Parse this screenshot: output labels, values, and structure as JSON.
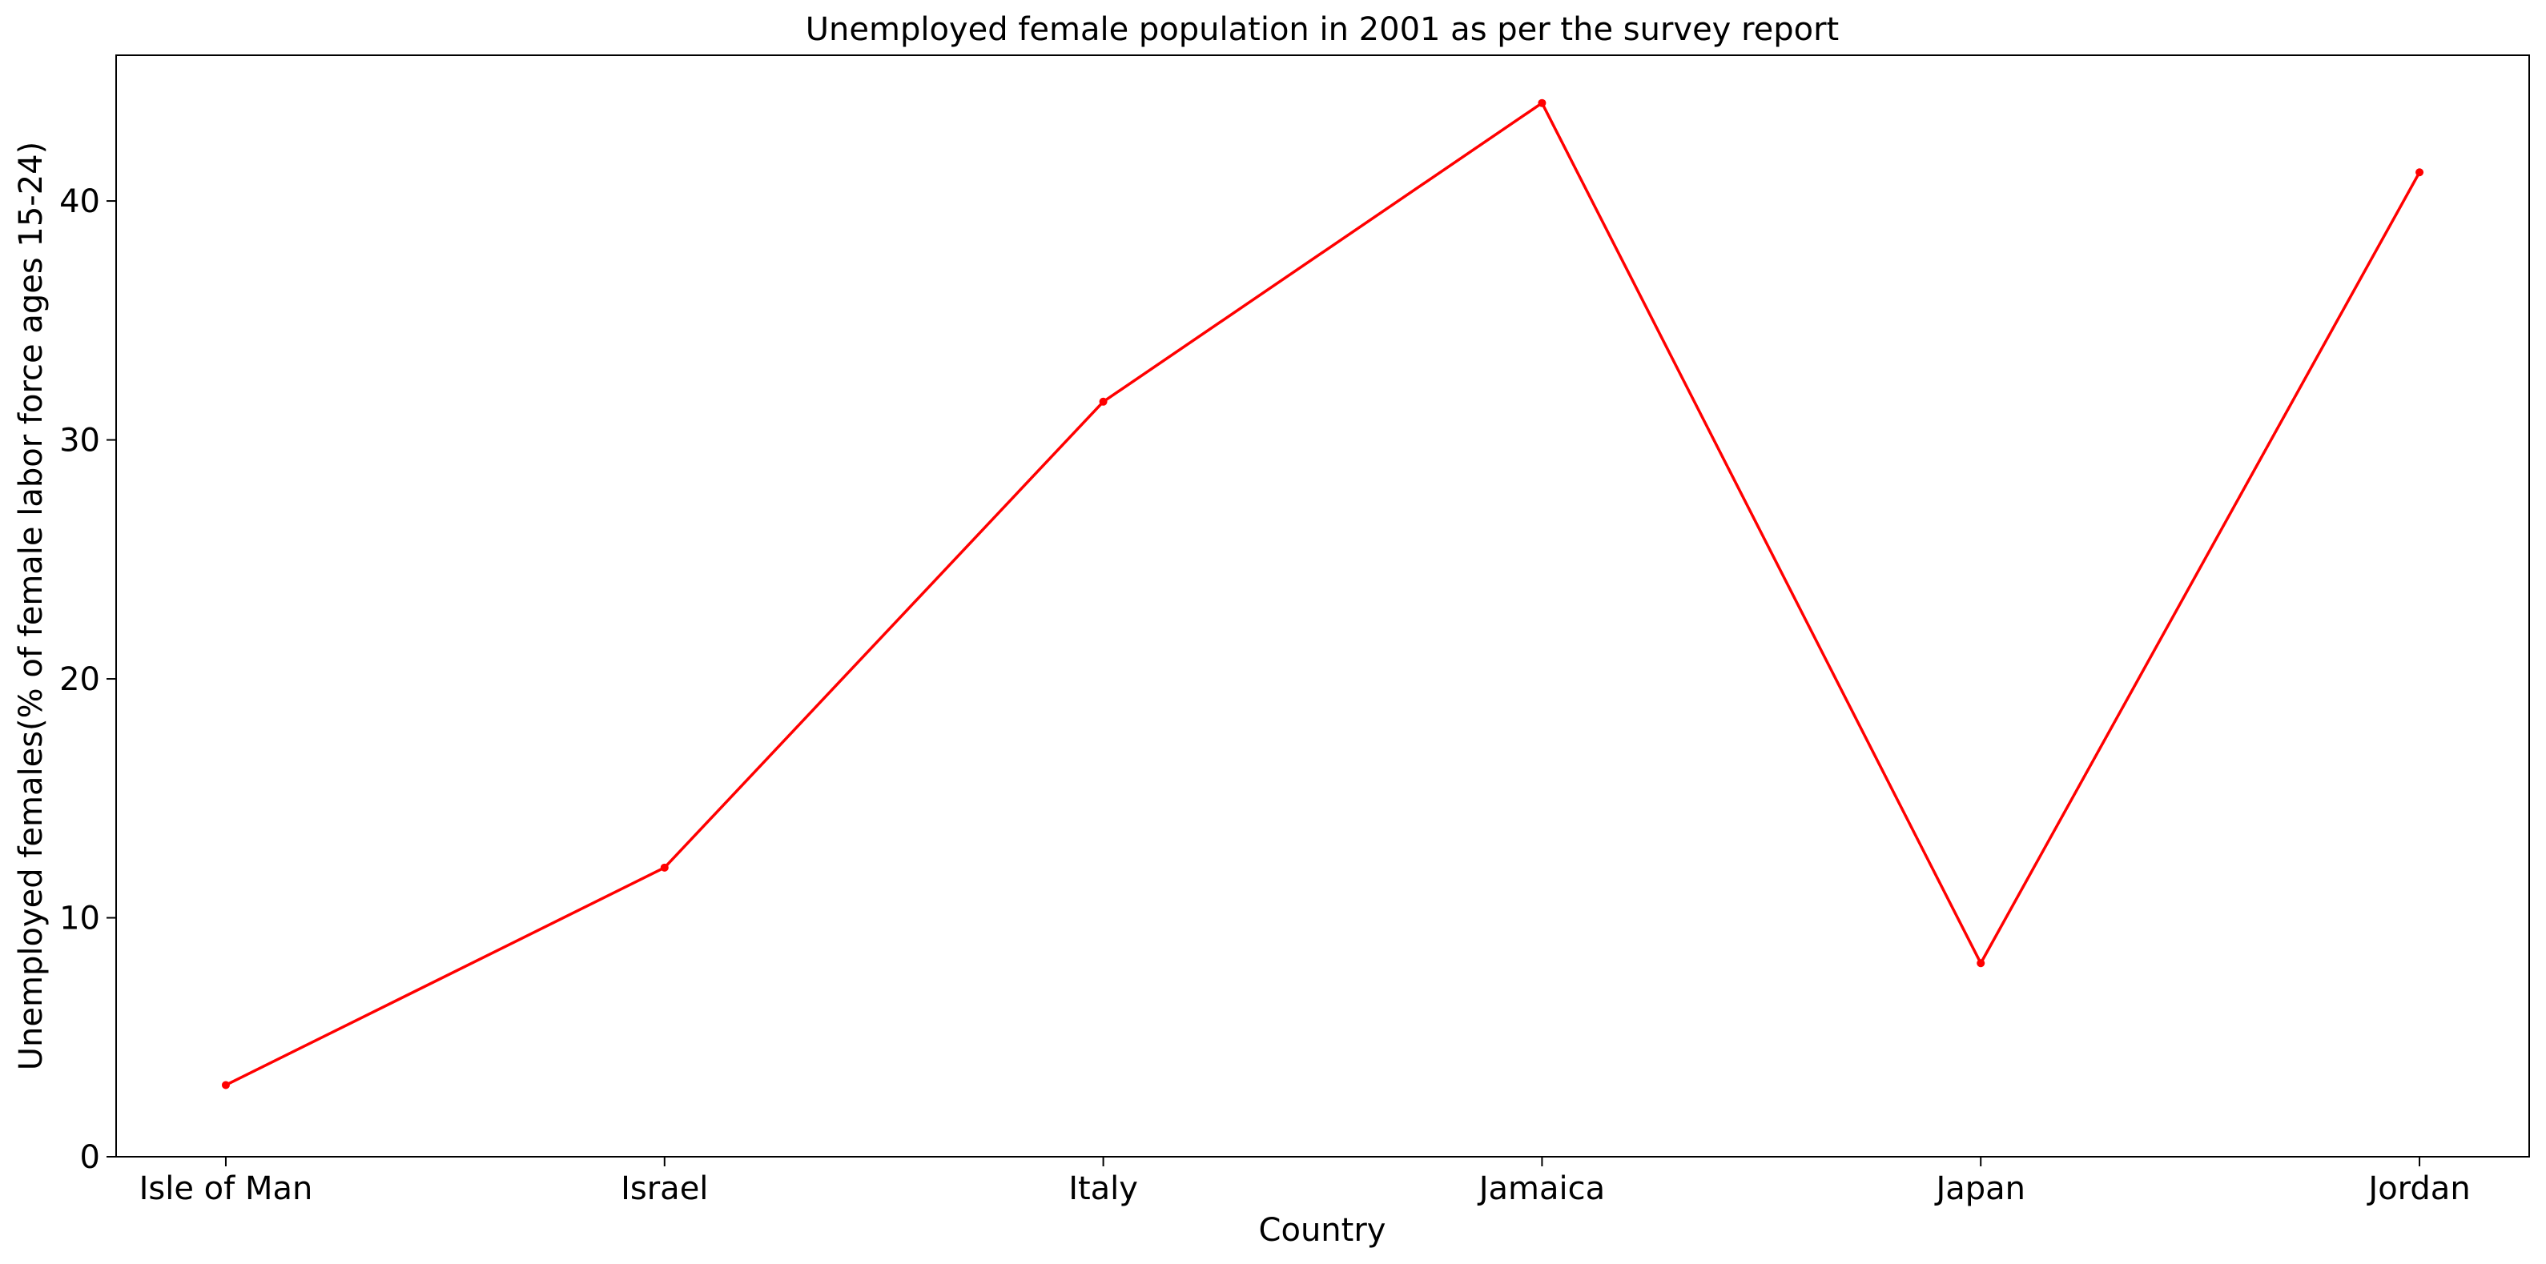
{
  "chart_data": {
    "type": "line",
    "title": "Unemployed female population in 2001 as per the survey report",
    "xlabel": "Country",
    "ylabel": "Unemployed females(% of female labor force ages 15-24)",
    "categories": [
      "Isle of Man",
      "Israel",
      "Italy",
      "Jamaica",
      "Japan",
      "Jordan"
    ],
    "series": [
      {
        "values": [
          3.0,
          12.1,
          31.6,
          44.1,
          8.1,
          41.2
        ],
        "color": "#ff0000"
      }
    ],
    "ylim": [
      0,
      46.1
    ],
    "yticks": [
      0,
      10,
      20,
      30,
      40
    ],
    "grid": false,
    "legend": "none"
  }
}
